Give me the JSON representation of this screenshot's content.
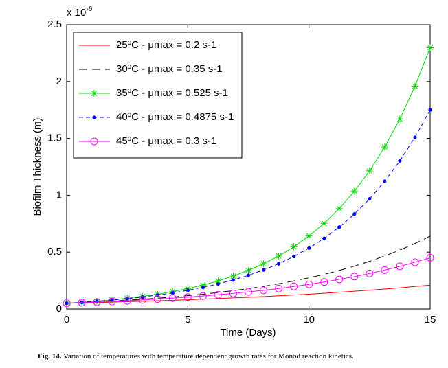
{
  "chart_data": {
    "type": "line",
    "y_scale_base": "x 10",
    "y_scale_exponent": "-6",
    "xlabel": "Time (Days)",
    "ylabel": "Biofilm Thickness (m)",
    "xlim": [
      0,
      15
    ],
    "ylim": [
      0,
      2.5
    ],
    "xticks": [
      0,
      5,
      10,
      15
    ],
    "yticks": [
      0,
      0.5,
      1,
      1.5,
      2,
      2.5
    ],
    "legend": "upper left",
    "x": [
      0,
      0.625,
      1.25,
      1.875,
      2.5,
      3.125,
      3.75,
      4.375,
      5,
      5.625,
      6.25,
      6.875,
      7.5,
      8.125,
      8.75,
      9.375,
      10,
      10.625,
      11.25,
      11.875,
      12.5,
      13.125,
      13.75,
      14.375,
      15
    ],
    "series": [
      {
        "name": "25ºC - μmax = 0.2 s-1",
        "color": "#ff0000",
        "dash": "solid",
        "marker": "none",
        "values": [
          0.05,
          0.053,
          0.056,
          0.06,
          0.064,
          0.067,
          0.072,
          0.076,
          0.081,
          0.086,
          0.091,
          0.097,
          0.103,
          0.109,
          0.116,
          0.123,
          0.13,
          0.138,
          0.147,
          0.156,
          0.165,
          0.175,
          0.186,
          0.198,
          0.21
        ]
      },
      {
        "name": "30ºC - μmax = 0.35 s-1",
        "color": "#000000",
        "dash": "long",
        "marker": "none",
        "values": [
          0.05,
          0.056,
          0.062,
          0.069,
          0.077,
          0.085,
          0.095,
          0.105,
          0.117,
          0.13,
          0.145,
          0.161,
          0.179,
          0.199,
          0.221,
          0.246,
          0.274,
          0.304,
          0.339,
          0.377,
          0.419,
          0.466,
          0.518,
          0.576,
          0.641
        ]
      },
      {
        "name": "35ºC - μmax = 0.525 s-1",
        "color": "#00dd00",
        "dash": "solid",
        "marker": "star",
        "values": [
          0.05,
          0.059,
          0.069,
          0.081,
          0.095,
          0.111,
          0.13,
          0.153,
          0.179,
          0.21,
          0.246,
          0.289,
          0.339,
          0.398,
          0.466,
          0.547,
          0.642,
          0.753,
          0.883,
          1.035,
          1.214,
          1.424,
          1.671,
          1.96,
          2.298
        ]
      },
      {
        "name": "40ºC - μmax = 0.4875 s-1",
        "color": "#0000ff",
        "dash": "short",
        "marker": "dot",
        "values": [
          0.05,
          0.058,
          0.067,
          0.078,
          0.09,
          0.105,
          0.122,
          0.141,
          0.164,
          0.19,
          0.22,
          0.255,
          0.296,
          0.343,
          0.398,
          0.462,
          0.535,
          0.621,
          0.72,
          0.835,
          0.968,
          1.123,
          1.302,
          1.51,
          1.751
        ]
      },
      {
        "name": "45ºC - μmax = 0.3 s-1",
        "color": "#ff00ff",
        "dash": "solid",
        "marker": "circle",
        "values": [
          0.05,
          0.055,
          0.06,
          0.066,
          0.072,
          0.079,
          0.087,
          0.095,
          0.104,
          0.114,
          0.125,
          0.137,
          0.15,
          0.164,
          0.18,
          0.198,
          0.216,
          0.237,
          0.26,
          0.285,
          0.312,
          0.342,
          0.375,
          0.411,
          0.45
        ]
      }
    ],
    "caption_label": "Fig. 14.",
    "caption_text": "Variation of temperatures with temperature dependent growth rates for Monod reaction kinetics."
  }
}
